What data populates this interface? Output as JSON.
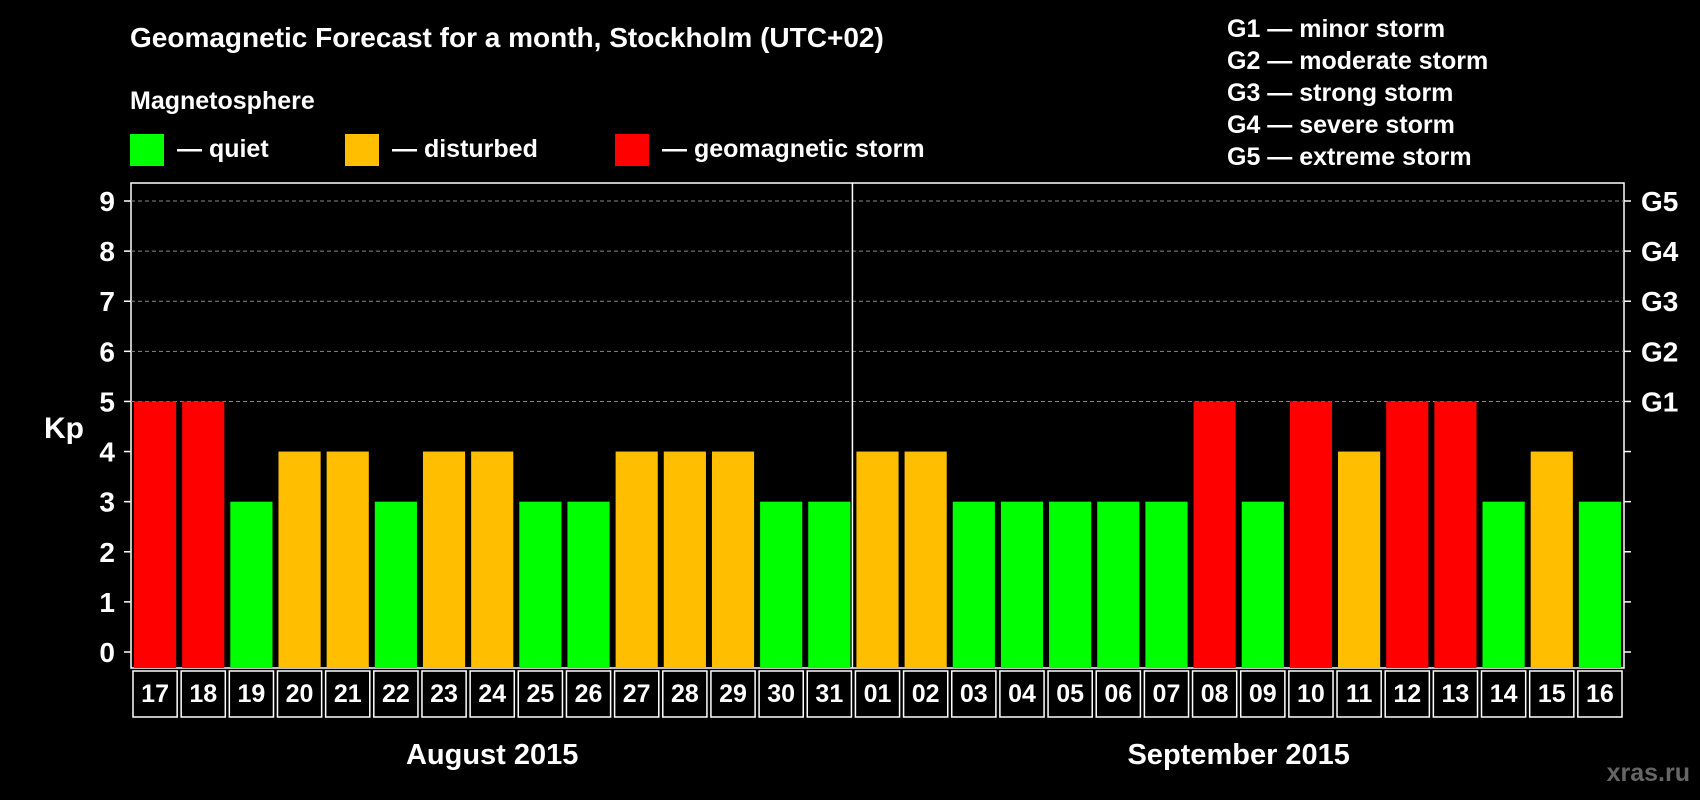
{
  "header": {
    "title": "Geomagnetic Forecast for a month, Stockholm (UTC+02)",
    "legend_title": "Magnetosphere",
    "legend": [
      {
        "label": "— quiet",
        "color": "#00ff00"
      },
      {
        "label": "— disturbed",
        "color": "#ffbf00"
      },
      {
        "label": "— geomagnetic storm",
        "color": "#ff0000"
      }
    ],
    "storm_scale": [
      "G1 — minor storm",
      "G2 — moderate storm",
      "G3 — strong storm",
      "G4 — severe storm",
      "G5 — extreme storm"
    ]
  },
  "chart_data": {
    "type": "bar",
    "ylabel": "Kp",
    "ylim": [
      0,
      9
    ],
    "yticks": [
      "0",
      "1",
      "2",
      "3",
      "4",
      "5",
      "6",
      "7",
      "8",
      "9"
    ],
    "right_axis_ticks": [
      {
        "value": 5,
        "label": "G1"
      },
      {
        "value": 6,
        "label": "G2"
      },
      {
        "value": 7,
        "label": "G3"
      },
      {
        "value": 8,
        "label": "G4"
      },
      {
        "value": 9,
        "label": "G5"
      }
    ],
    "grid": "dashed horizontal at 5-9",
    "categories": [
      "17",
      "18",
      "19",
      "20",
      "21",
      "22",
      "23",
      "24",
      "25",
      "26",
      "27",
      "28",
      "29",
      "30",
      "31",
      "01",
      "02",
      "03",
      "04",
      "05",
      "06",
      "07",
      "08",
      "09",
      "10",
      "11",
      "12",
      "13",
      "14",
      "15",
      "16"
    ],
    "values": [
      5,
      5,
      3,
      4,
      4,
      3,
      4,
      4,
      3,
      3,
      4,
      4,
      4,
      3,
      3,
      4,
      4,
      3,
      3,
      3,
      3,
      3,
      5,
      3,
      5,
      4,
      5,
      5,
      3,
      4,
      3
    ],
    "colors": {
      "quiet": "#00ff00",
      "disturbed": "#ffbf00",
      "storm": "#ff0000"
    },
    "months": [
      {
        "label": "August 2015",
        "start": 0,
        "end": 14
      },
      {
        "label": "September 2015",
        "start": 15,
        "end": 30
      }
    ]
  },
  "watermark": "xras.ru"
}
